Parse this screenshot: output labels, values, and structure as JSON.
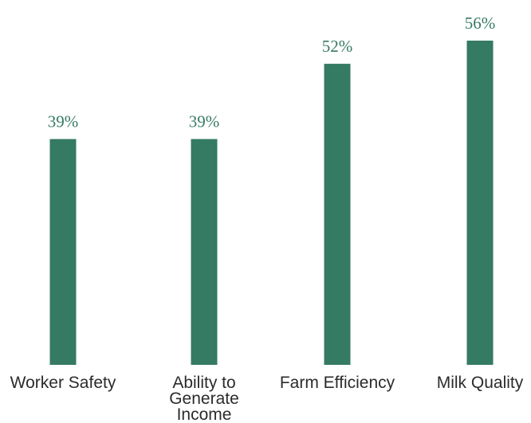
{
  "chart_data": {
    "type": "bar",
    "categories": [
      [
        "Worker Safety"
      ],
      [
        "Ability to",
        "Generate",
        "Income"
      ],
      [
        "Farm Efficiency"
      ],
      [
        "Milk Quality"
      ]
    ],
    "values": [
      39,
      39,
      52,
      56
    ],
    "value_labels": [
      "39%",
      "39%",
      "52%",
      "56%"
    ],
    "ylim": [
      0,
      56
    ],
    "grid": false,
    "legend": "none",
    "colors": {
      "bar": "#357a63",
      "value_label": "#357a63",
      "category_label": "#2b2b2b"
    }
  }
}
